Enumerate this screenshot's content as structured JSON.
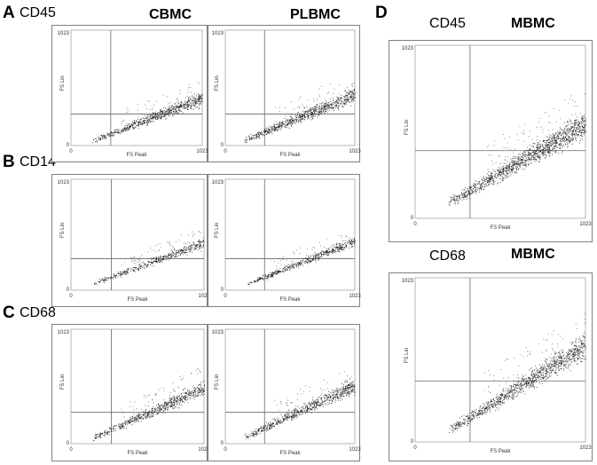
{
  "figure": {
    "panel_letters": [
      "A",
      "B",
      "C",
      "D"
    ],
    "markers": {
      "a": "CD45",
      "b": "CD14",
      "c": "CD68",
      "d_top": "CD45",
      "d_bottom": "CD68"
    },
    "groups": {
      "cbmc": "CBMC",
      "plbmc": "PLBMC",
      "mbmc_top": "MBMC",
      "mbmc_bottom": "MBMC"
    }
  },
  "chart_data": [
    {
      "id": "A-CBMC",
      "type": "scatter",
      "marker": "CD45",
      "group": "CBMC",
      "xlabel": "FS Peak",
      "ylabel": "FS Lin",
      "xlim": [
        0,
        1023
      ],
      "ylim": [
        0,
        1023
      ],
      "x_ticks": [
        "0",
        "1023"
      ],
      "y_ticks": [
        "0",
        "1023"
      ],
      "gate": {
        "x": 310,
        "y": 280
      },
      "cloud": {
        "x_start": 160,
        "y_start": 40,
        "x_end": 1023,
        "y_end": 420,
        "spread": 35,
        "n": 700,
        "sparse": 70
      }
    },
    {
      "id": "A-PLBMC",
      "type": "scatter",
      "marker": "CD45",
      "group": "PLBMC",
      "xlabel": "FS Peak",
      "ylabel": "FS Lin",
      "xlim": [
        0,
        1023
      ],
      "ylim": [
        0,
        1023
      ],
      "x_ticks": [
        "0",
        "1023"
      ],
      "y_ticks": [
        "0",
        "1023"
      ],
      "gate": {
        "x": 310,
        "y": 280
      },
      "cloud": {
        "x_start": 150,
        "y_start": 50,
        "x_end": 1023,
        "y_end": 450,
        "spread": 40,
        "n": 750,
        "sparse": 60
      }
    },
    {
      "id": "B-CBMC",
      "type": "scatter",
      "marker": "CD14",
      "group": "CBMC",
      "xlabel": "FS Peak",
      "ylabel": "FS Lin",
      "xlim": [
        0,
        1023
      ],
      "ylim": [
        0,
        1023
      ],
      "x_ticks": [
        "0",
        "1023"
      ],
      "y_ticks": [
        "0",
        "1023"
      ],
      "gate": {
        "x": 310,
        "y": 290
      },
      "cloud": {
        "x_start": 170,
        "y_start": 60,
        "x_end": 1023,
        "y_end": 440,
        "spread": 30,
        "n": 450,
        "sparse": 70
      }
    },
    {
      "id": "B-PLBMC",
      "type": "scatter",
      "marker": "CD14",
      "group": "PLBMC",
      "xlabel": "FS Peak",
      "ylabel": "FS Lin",
      "xlim": [
        0,
        1023
      ],
      "ylim": [
        0,
        1023
      ],
      "x_ticks": [
        "0",
        "1023"
      ],
      "y_ticks": [
        "0",
        "1023"
      ],
      "gate": {
        "x": 310,
        "y": 290
      },
      "cloud": {
        "x_start": 170,
        "y_start": 60,
        "x_end": 1023,
        "y_end": 450,
        "spread": 28,
        "n": 520,
        "sparse": 55
      }
    },
    {
      "id": "C-CBMC",
      "type": "scatter",
      "marker": "CD68",
      "group": "CBMC",
      "xlabel": "FS Peak",
      "ylabel": "FS Lin",
      "xlim": [
        0,
        1023
      ],
      "ylim": [
        0,
        1023
      ],
      "x_ticks": [
        "0",
        "1023"
      ],
      "y_ticks": [
        "0",
        "1023"
      ],
      "gate": {
        "x": 310,
        "y": 280
      },
      "cloud": {
        "x_start": 160,
        "y_start": 50,
        "x_end": 1023,
        "y_end": 500,
        "spread": 40,
        "n": 650,
        "sparse": 70
      }
    },
    {
      "id": "C-PLBMC",
      "type": "scatter",
      "marker": "CD68",
      "group": "PLBMC",
      "xlabel": "FS Peak",
      "ylabel": "FS Lin",
      "xlim": [
        0,
        1023
      ],
      "ylim": [
        0,
        1023
      ],
      "x_ticks": [
        "0",
        "1023"
      ],
      "y_ticks": [
        "0",
        "1023"
      ],
      "gate": {
        "x": 310,
        "y": 280
      },
      "cloud": {
        "x_start": 150,
        "y_start": 60,
        "x_end": 1023,
        "y_end": 520,
        "spread": 42,
        "n": 700,
        "sparse": 60
      }
    },
    {
      "id": "D-CD45",
      "type": "scatter",
      "marker": "CD45",
      "group": "MBMC",
      "xlabel": "FS Peak",
      "ylabel": "FS Lin",
      "xlim": [
        0,
        1023
      ],
      "ylim": [
        0,
        1023
      ],
      "x_ticks": [
        "0",
        "1023"
      ],
      "y_ticks": [
        "0",
        "1023"
      ],
      "gate": {
        "x": 330,
        "y": 400
      },
      "cloud": {
        "x_start": 200,
        "y_start": 90,
        "x_end": 1023,
        "y_end": 560,
        "spread": 45,
        "n": 1300,
        "sparse": 110
      }
    },
    {
      "id": "D-CD68",
      "type": "scatter",
      "marker": "CD68",
      "group": "MBMC",
      "xlabel": "FS Peak",
      "ylabel": "FS Lin",
      "xlim": [
        0,
        1023
      ],
      "ylim": [
        0,
        1023
      ],
      "x_ticks": [
        "0",
        "1023"
      ],
      "y_ticks": [
        "0",
        "1023"
      ],
      "gate": {
        "x": 330,
        "y": 380
      },
      "cloud": {
        "x_start": 200,
        "y_start": 70,
        "x_end": 1023,
        "y_end": 600,
        "spread": 45,
        "n": 1100,
        "sparse": 90
      }
    }
  ]
}
